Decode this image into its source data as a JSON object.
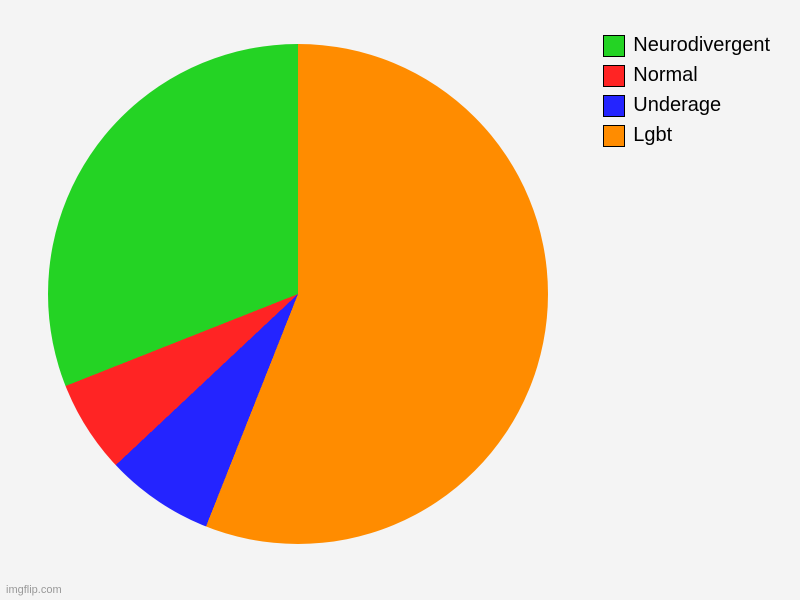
{
  "chart": {
    "type": "pie",
    "background_color": "#f4f4f4",
    "slices": [
      {
        "label": "Lgbt",
        "value": 56,
        "color": "#ff8c00"
      },
      {
        "label": "Underage",
        "value": 7,
        "color": "#2424ff"
      },
      {
        "label": "Normal",
        "value": 6,
        "color": "#ff2424"
      },
      {
        "label": "Neurodivergent",
        "value": 31,
        "color": "#24d324"
      }
    ],
    "legend_order": [
      3,
      2,
      1,
      0
    ],
    "legend_fontsize": 20,
    "legend_swatch_border": "#000000",
    "pie_diameter": 500,
    "start_angle_deg": 0
  },
  "watermark": "imgflip.com"
}
